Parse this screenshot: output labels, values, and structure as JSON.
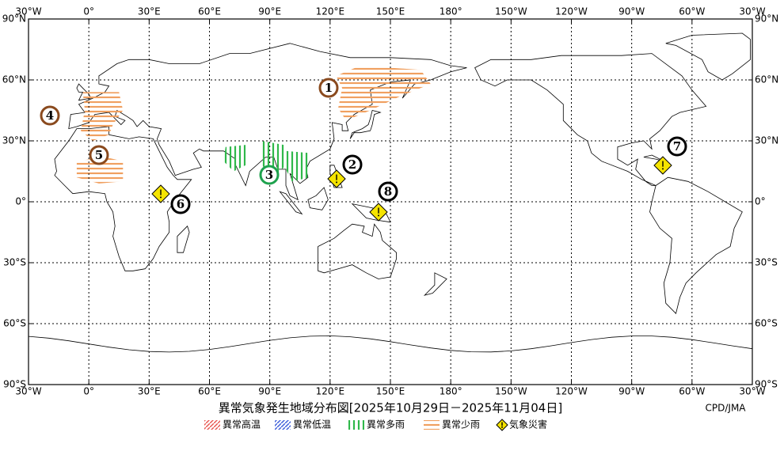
{
  "map": {
    "title": "異常気象発生地域分布図[2025年10月29日－2025年11月04日]",
    "credit": "CPD/JMA",
    "lon_labels": [
      "30°W",
      "0°",
      "30°E",
      "60°E",
      "90°E",
      "120°E",
      "150°E",
      "180°",
      "150°W",
      "120°W",
      "90°W",
      "60°W",
      "30°W"
    ],
    "lat_labels": [
      "90°N",
      "60°N",
      "30°N",
      "0°",
      "30°S",
      "60°S",
      "90°S"
    ],
    "legend": [
      {
        "label": "異常高温",
        "color": "#e8544e"
      },
      {
        "label": "異常低温",
        "color": "#3a5bd9"
      },
      {
        "label": "異常多雨",
        "color": "#2fb84a"
      },
      {
        "label": "異常少雨",
        "color": "#f0a060"
      },
      {
        "label": "気象災害",
        "color": "#f5e400"
      }
    ],
    "events": [
      {
        "label": "1",
        "color": "#8a4a1e"
      },
      {
        "label": "2",
        "color": "#000000"
      },
      {
        "label": "3",
        "color": "#1fa24e"
      },
      {
        "label": "4",
        "color": "#8a4a1e"
      },
      {
        "label": "5",
        "color": "#8a4a1e"
      },
      {
        "label": "6",
        "color": "#000000"
      },
      {
        "label": "7",
        "color": "#000000"
      },
      {
        "label": "8",
        "color": "#000000"
      }
    ]
  }
}
